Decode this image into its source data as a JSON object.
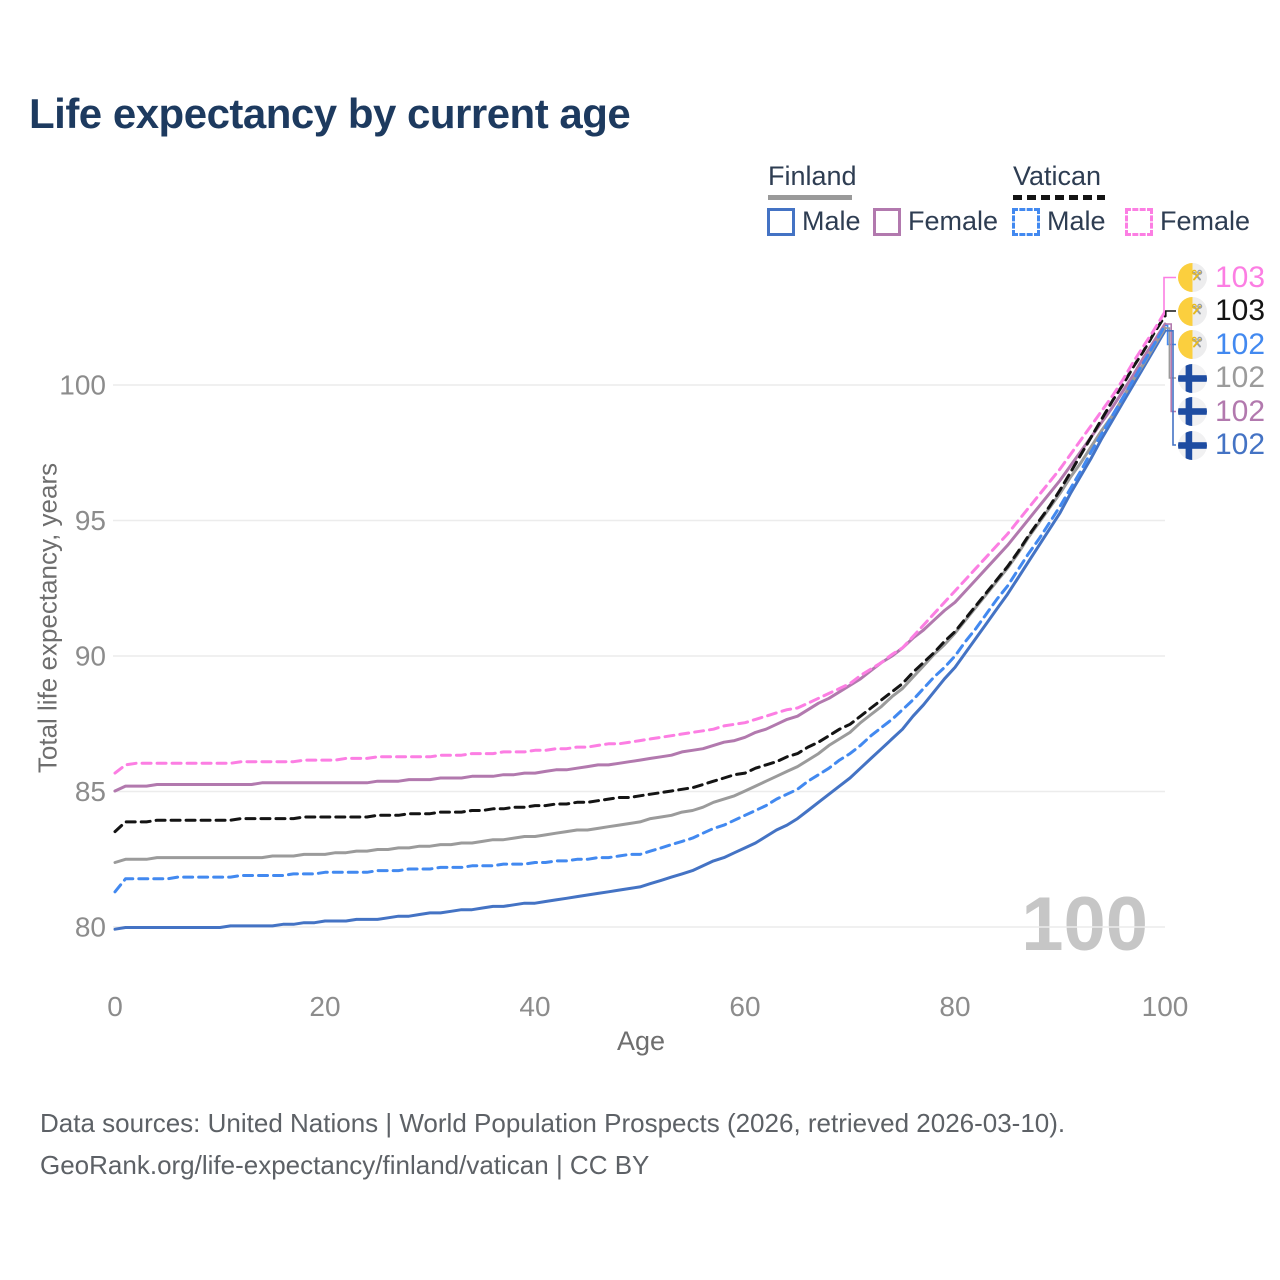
{
  "title": "Life expectancy by current age",
  "legend": {
    "groups": [
      {
        "name": "Finland",
        "line_style": "solid",
        "line_color": "#9a9a9a",
        "items": [
          {
            "label": "Male",
            "color": "#4473c4",
            "dash": false
          },
          {
            "label": "Female",
            "color": "#b279ae",
            "dash": false
          }
        ]
      },
      {
        "name": "Vatican",
        "line_style": "dashed",
        "line_color": "#141414",
        "items": [
          {
            "label": "Male",
            "color": "#4289f0",
            "dash": true
          },
          {
            "label": "Female",
            "color": "#fc7ee3",
            "dash": true
          }
        ]
      }
    ]
  },
  "chart_data": {
    "type": "line",
    "title": "Life expectancy by current age",
    "xlabel": "Age",
    "ylabel": "Total life expectancy, years",
    "xlim": [
      0,
      100
    ],
    "ylim": [
      78,
      104.5
    ],
    "x_ticks": [
      0,
      20,
      40,
      60,
      80,
      100
    ],
    "y_ticks": [
      80,
      85,
      90,
      95,
      100
    ],
    "grid": "horizontal-only",
    "hover_age_label": "100",
    "ages": [
      0,
      1,
      5,
      10,
      15,
      20,
      25,
      30,
      35,
      40,
      45,
      50,
      55,
      60,
      65,
      70,
      75,
      80,
      85,
      90,
      95,
      100
    ],
    "series": [
      {
        "name": "Finland Male",
        "country": "Finland",
        "sex": "Male",
        "color": "#4473c4",
        "dash": false,
        "values": [
          79.9,
          80.0,
          80.0,
          80.0,
          80.05,
          80.2,
          80.3,
          80.5,
          80.7,
          80.9,
          81.15,
          81.5,
          82.1,
          82.9,
          84.0,
          85.5,
          87.3,
          89.6,
          92.3,
          95.3,
          98.7,
          102.0
        ]
      },
      {
        "name": "Finland Female",
        "country": "Finland",
        "sex": "Female",
        "color": "#b279ae",
        "dash": false,
        "values": [
          85.0,
          85.2,
          85.25,
          85.25,
          85.3,
          85.3,
          85.35,
          85.45,
          85.55,
          85.7,
          85.9,
          86.15,
          86.5,
          87.0,
          87.8,
          88.9,
          90.3,
          92.0,
          94.1,
          96.5,
          99.15,
          102.25
        ]
      },
      {
        "name": "Finland",
        "country": "Finland",
        "sex": "Both",
        "color": "#9b9b9b",
        "dash": false,
        "values": [
          82.4,
          82.5,
          82.55,
          82.55,
          82.6,
          82.7,
          82.85,
          83.0,
          83.15,
          83.35,
          83.6,
          83.9,
          84.3,
          85.0,
          85.9,
          87.2,
          88.8,
          90.85,
          93.25,
          96.0,
          98.9,
          102.1
        ]
      },
      {
        "name": "Vatican Male",
        "country": "Vatican",
        "sex": "Male",
        "color": "#4289f0",
        "dash": true,
        "values": [
          81.3,
          81.75,
          81.8,
          81.85,
          81.9,
          82.0,
          82.05,
          82.15,
          82.25,
          82.35,
          82.5,
          82.7,
          83.3,
          84.1,
          85.1,
          86.4,
          88.0,
          90.0,
          92.6,
          95.5,
          98.9,
          102.2
        ]
      },
      {
        "name": "Vatican",
        "country": "Vatican",
        "sex": "Both",
        "color": "#141414",
        "dash": true,
        "values": [
          83.5,
          83.85,
          83.95,
          83.95,
          84.0,
          84.05,
          84.1,
          84.2,
          84.3,
          84.45,
          84.6,
          84.85,
          85.15,
          85.7,
          86.4,
          87.5,
          89.0,
          90.9,
          93.3,
          96.1,
          99.4,
          102.55
        ]
      },
      {
        "name": "Vatican Female",
        "country": "Vatican",
        "sex": "Female",
        "color": "#fc7ee3",
        "dash": true,
        "values": [
          85.7,
          86.0,
          86.05,
          86.05,
          86.1,
          86.15,
          86.25,
          86.3,
          86.4,
          86.5,
          86.65,
          86.85,
          87.15,
          87.55,
          88.1,
          89.0,
          90.3,
          92.4,
          94.5,
          96.9,
          99.6,
          102.7
        ]
      }
    ],
    "end_labels": [
      {
        "value": "103",
        "color": "#fc7ee3",
        "flag": "vatican",
        "series": "Vatican Female"
      },
      {
        "value": "103",
        "color": "#141414",
        "flag": "vatican",
        "series": "Vatican"
      },
      {
        "value": "102",
        "color": "#4289f0",
        "flag": "vatican",
        "series": "Vatican Male"
      },
      {
        "value": "102",
        "color": "#9b9b9b",
        "flag": "finland",
        "series": "Finland"
      },
      {
        "value": "102",
        "color": "#b279ae",
        "flag": "finland",
        "series": "Finland Female"
      },
      {
        "value": "102",
        "color": "#4473c4",
        "flag": "finland",
        "series": "Finland Male"
      }
    ],
    "colors": {
      "gridline": "#ececec",
      "tick_text": "#8c8c8c",
      "watermark": "#c6c6c6",
      "finland_flag_blue": "#1e4ca1",
      "vatican_flag_yellow": "#fbcf3e"
    }
  },
  "footer": {
    "line1": "Data sources: United Nations | World Population Prospects (2026, retrieved 2026-03-10).",
    "line2": "GeoRank.org/life-expectancy/finland/vatican | CC BY"
  }
}
